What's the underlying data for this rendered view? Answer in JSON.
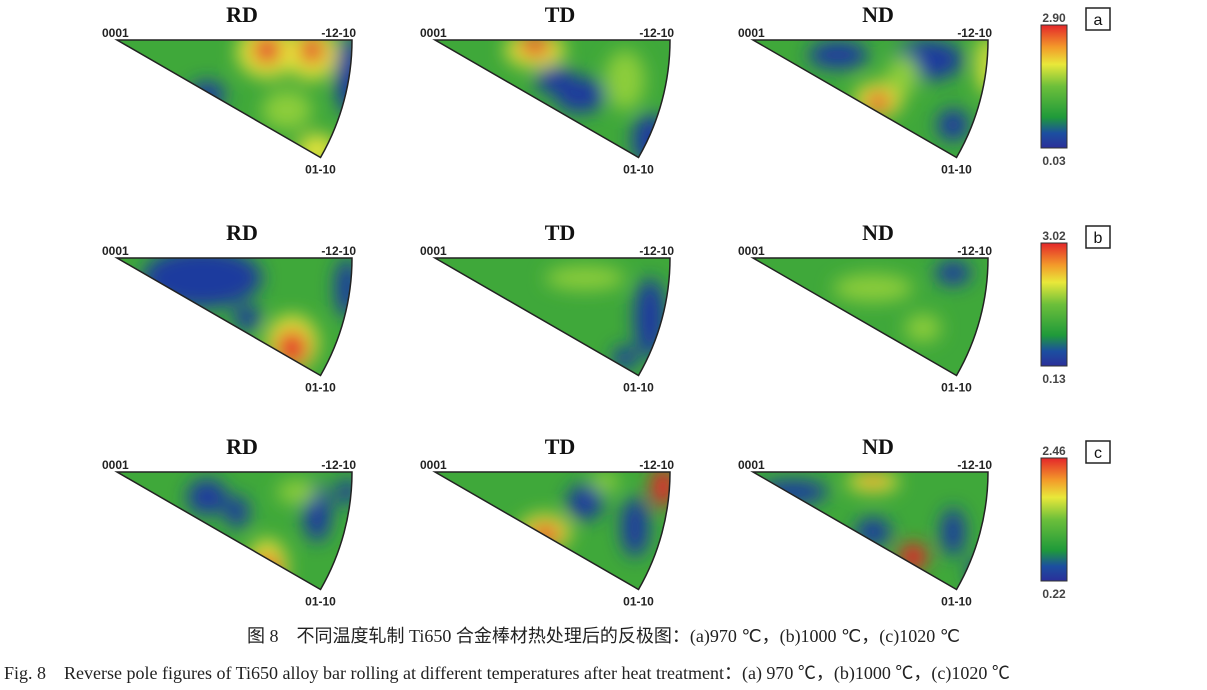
{
  "figure": {
    "rows": [
      {
        "label": "a",
        "max": "2.90",
        "min": "0.03",
        "panels": [
          {
            "title": "RD"
          },
          {
            "title": "TD"
          },
          {
            "title": "ND"
          }
        ]
      },
      {
        "label": "b",
        "max": "3.02",
        "min": "0.13",
        "panels": [
          {
            "title": "RD"
          },
          {
            "title": "TD"
          },
          {
            "title": "ND"
          }
        ]
      },
      {
        "label": "c",
        "max": "2.46",
        "min": "0.22",
        "panels": [
          {
            "title": "RD"
          },
          {
            "title": "TD"
          },
          {
            "title": "ND"
          }
        ]
      }
    ],
    "corner_labels": {
      "apex": "0001",
      "right": "-12-10",
      "bottom": "01-10"
    },
    "colorscale": [
      "#1c2fa0",
      "#1f8a3a",
      "#4fb534",
      "#e9e83a",
      "#f39a2a",
      "#e4262a"
    ]
  },
  "caption": {
    "cn": "图 8　不同温度轧制 Ti650 合金棒材热处理后的反极图：(a)970 ℃，(b)1000 ℃，(c)1020 ℃",
    "en": "Fig. 8　Reverse pole figures of Ti650 alloy bar rolling at different temperatures after heat treatment：(a) 970 ℃，(b)1000 ℃，(c)1020 ℃"
  }
}
